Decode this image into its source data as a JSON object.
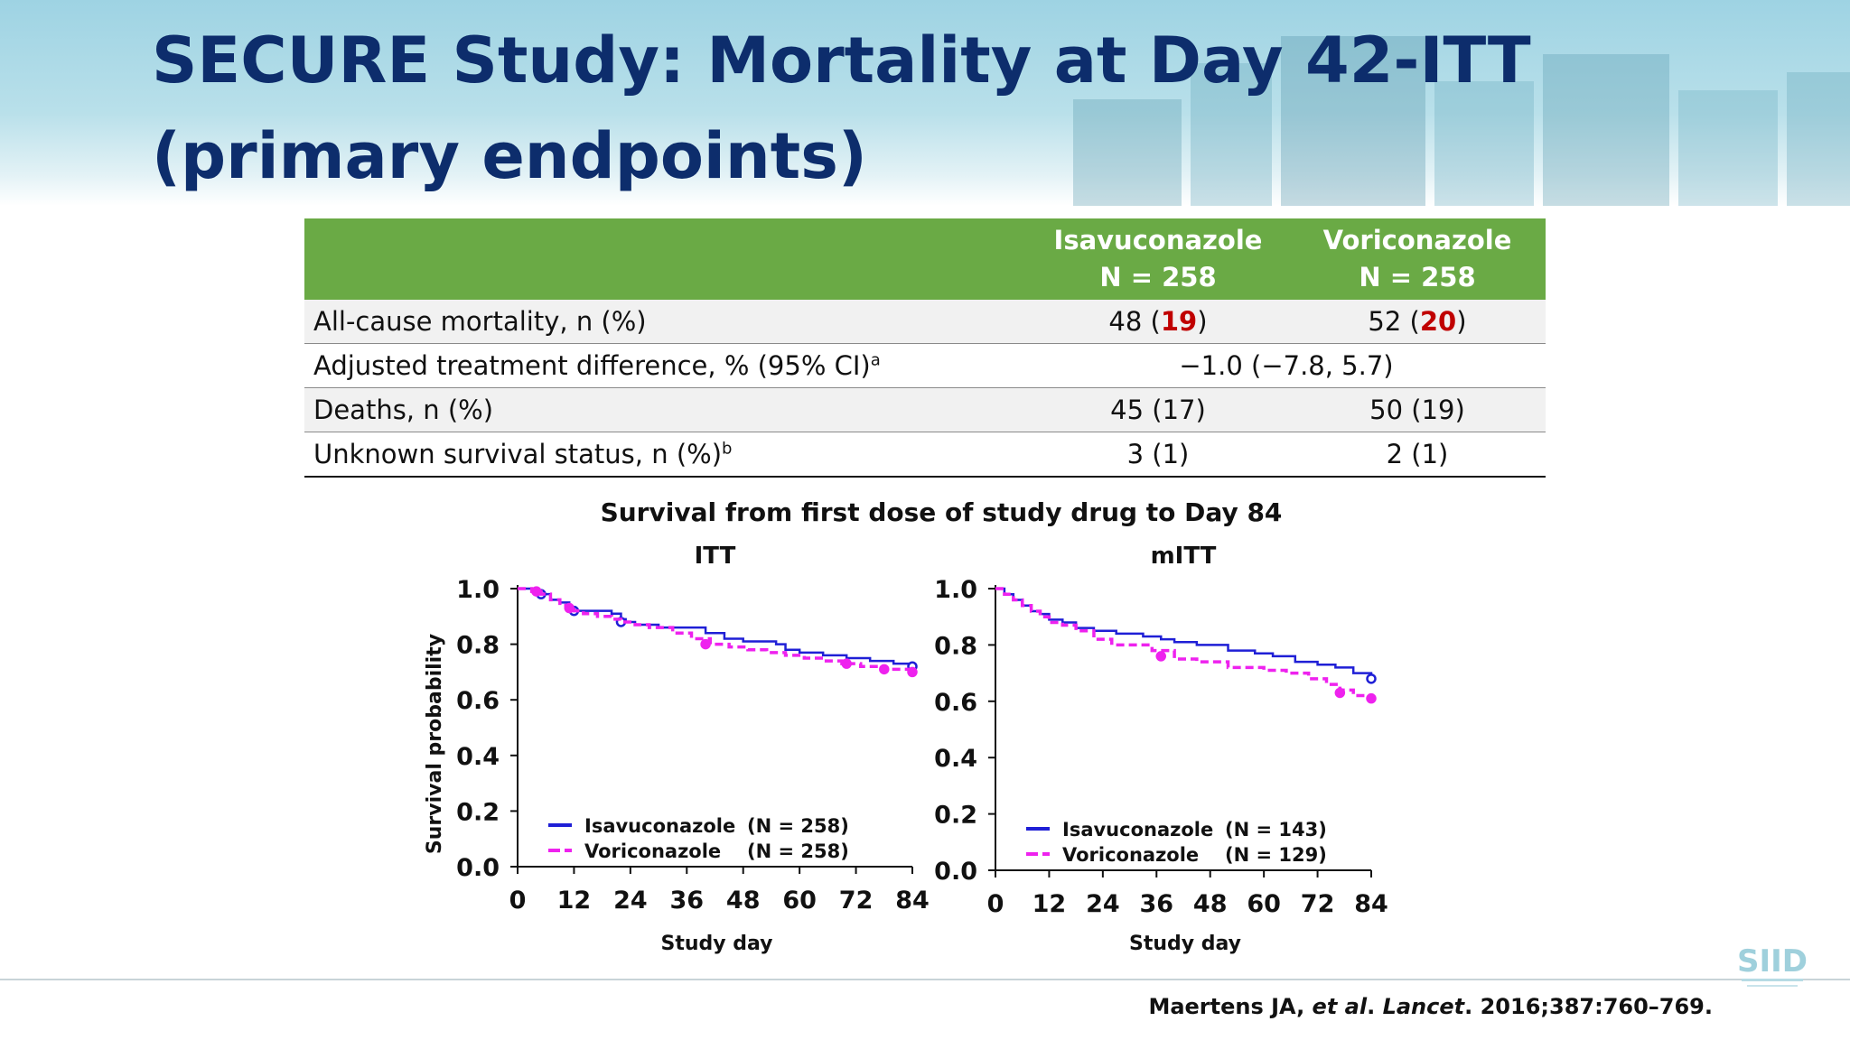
{
  "title": {
    "line1": "SECURE Study: Mortality at Day 42-ITT",
    "line2": "(primary endpoints)"
  },
  "table": {
    "headers": [
      {
        "name": "Isavuconazole",
        "n": "N = 258"
      },
      {
        "name": "Voriconazole",
        "n": "N = 258"
      }
    ],
    "rows": [
      {
        "label": "All-cause mortality, n (%)",
        "isa_n": "48",
        "isa_pct": "19",
        "vori_n": "52",
        "vori_pct": "20"
      },
      {
        "label": "Adjusted treatment difference, % (95% CI)",
        "label_sup": "a",
        "value": "−1.0 (−7.8, 5.7)"
      },
      {
        "label": "Deaths, n (%)",
        "isa": "45 (17)",
        "vori": "50 (19)"
      },
      {
        "label": "Unknown survival status, n (%)",
        "label_sup": "b",
        "isa": "3 (1)",
        "vori": "2 (1)"
      }
    ]
  },
  "figure_title": "Survival from first dose of study drug to Day 84",
  "colors": {
    "isavuconazole": "#1f1fd6",
    "voriconazole": "#ee22ee",
    "header_green": "#6aaa45",
    "title_navy": "#0d2d6c",
    "emphasis_red": "#c00000"
  },
  "chart_data": [
    {
      "type": "line",
      "title": "ITT",
      "xlabel": "Study day",
      "ylabel": "Survival probability",
      "xlim": [
        0,
        84
      ],
      "ylim": [
        0,
        1.0
      ],
      "x_ticks": [
        "0",
        "12",
        "24",
        "36",
        "48",
        "60",
        "72",
        "84"
      ],
      "y_ticks": [
        "0.0",
        "0.2",
        "0.4",
        "0.6",
        "0.8",
        "1.0"
      ],
      "legend": "bottom-left",
      "series": [
        {
          "name": "Isavuconazole",
          "label": "Isavuconazole",
          "n_label": "(N = 258)",
          "style": "solid",
          "x": [
            0,
            3,
            5,
            7,
            9,
            11,
            12,
            14,
            17,
            20,
            22,
            23,
            25,
            28,
            30,
            35,
            40,
            44,
            48,
            55,
            57,
            60,
            65,
            70,
            75,
            80,
            84
          ],
          "y": [
            1.0,
            0.99,
            0.98,
            0.96,
            0.95,
            0.93,
            0.92,
            0.92,
            0.92,
            0.91,
            0.89,
            0.88,
            0.87,
            0.87,
            0.86,
            0.86,
            0.84,
            0.82,
            0.81,
            0.8,
            0.78,
            0.77,
            0.76,
            0.75,
            0.74,
            0.73,
            0.72
          ],
          "censored": [
            [
              5,
              0.98
            ],
            [
              12,
              0.92
            ],
            [
              22,
              0.88
            ],
            [
              84,
              0.72
            ]
          ]
        },
        {
          "name": "Voriconazole",
          "label": "Voriconazole",
          "n_label": "(N = 258)",
          "style": "dashed",
          "x": [
            0,
            3,
            5,
            7,
            9,
            11,
            12,
            14,
            17,
            20,
            22,
            25,
            28,
            33,
            37,
            41,
            45,
            49,
            53,
            57,
            61,
            65,
            69,
            73,
            77,
            81,
            84
          ],
          "y": [
            1.0,
            0.99,
            0.98,
            0.96,
            0.94,
            0.93,
            0.92,
            0.91,
            0.9,
            0.89,
            0.88,
            0.87,
            0.86,
            0.84,
            0.82,
            0.8,
            0.79,
            0.78,
            0.77,
            0.76,
            0.75,
            0.74,
            0.73,
            0.72,
            0.71,
            0.71,
            0.7
          ],
          "censored": [
            [
              4,
              0.99
            ],
            [
              11,
              0.93
            ],
            [
              40,
              0.8
            ],
            [
              70,
              0.73
            ],
            [
              78,
              0.71
            ],
            [
              84,
              0.7
            ]
          ]
        }
      ]
    },
    {
      "type": "line",
      "title": "mITT",
      "xlabel": "Study day",
      "ylabel": "",
      "xlim": [
        0,
        84
      ],
      "ylim": [
        0,
        1.0
      ],
      "x_ticks": [
        "0",
        "12",
        "24",
        "36",
        "48",
        "60",
        "72",
        "84"
      ],
      "y_ticks": [
        "0.0",
        "0.2",
        "0.4",
        "0.6",
        "0.8",
        "1.0"
      ],
      "legend": "bottom-left",
      "series": [
        {
          "name": "Isavuconazole",
          "label": "Isavuconazole",
          "n_label": "(N = 143)",
          "style": "solid",
          "x": [
            0,
            2,
            4,
            6,
            8,
            10,
            12,
            15,
            18,
            22,
            27,
            33,
            37,
            40,
            45,
            52,
            58,
            62,
            67,
            72,
            76,
            80,
            84
          ],
          "y": [
            1.0,
            0.98,
            0.96,
            0.94,
            0.92,
            0.91,
            0.89,
            0.88,
            0.86,
            0.85,
            0.84,
            0.83,
            0.82,
            0.81,
            0.8,
            0.78,
            0.77,
            0.76,
            0.74,
            0.73,
            0.72,
            0.7,
            0.68
          ],
          "censored": [
            [
              84,
              0.68
            ]
          ]
        },
        {
          "name": "Voriconazole",
          "label": "Voriconazole",
          "n_label": "(N = 129)",
          "style": "dashed",
          "x": [
            0,
            2,
            4,
            6,
            8,
            10,
            12,
            15,
            18,
            22,
            26,
            30,
            35,
            40,
            45,
            52,
            60,
            65,
            70,
            74,
            77,
            80,
            84
          ],
          "y": [
            1.0,
            0.98,
            0.96,
            0.94,
            0.92,
            0.9,
            0.88,
            0.87,
            0.85,
            0.82,
            0.8,
            0.8,
            0.78,
            0.75,
            0.74,
            0.72,
            0.71,
            0.7,
            0.68,
            0.66,
            0.64,
            0.62,
            0.61
          ],
          "censored": [
            [
              37,
              0.76
            ],
            [
              77,
              0.63
            ],
            [
              84,
              0.61
            ]
          ]
        }
      ]
    }
  ],
  "citation": {
    "authors": "Maertens JA, ",
    "et_al": "et al",
    "sep": ". ",
    "journal": "Lancet",
    "details": ". 2016;387:760–769."
  },
  "logo_text": "SIID"
}
